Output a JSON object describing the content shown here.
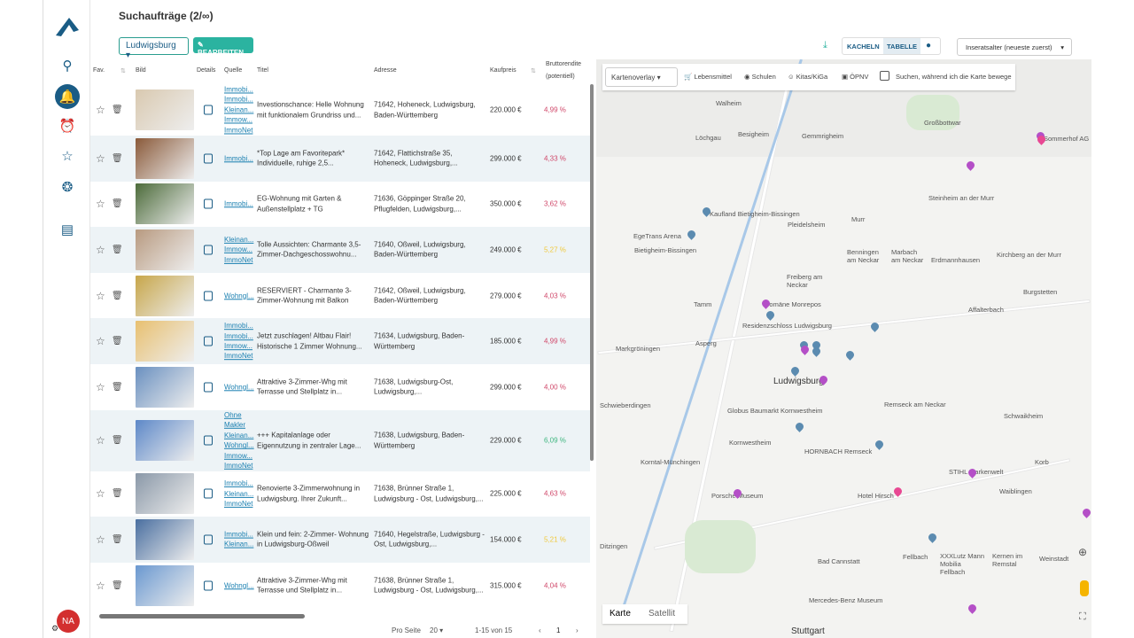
{
  "app": {
    "title": "Suchaufträge (2/∞)",
    "avatar": "NA"
  },
  "toolbar": {
    "location": "Ludwigsburg",
    "edit": "BEARBEITEN",
    "view_tiles": "KACHELN",
    "view_table": "TABELLE",
    "sort": "Inseratsalter (neueste zuerst)"
  },
  "table": {
    "headers": {
      "fav": "Fav.",
      "bild": "Bild",
      "details": "Details",
      "quelle": "Quelle",
      "titel": "Titel",
      "adresse": "Adresse",
      "kaufpreis": "Kaufpreis",
      "rendite": "Bruttorendite",
      "rendite2": "(potentiell)"
    },
    "rows": [
      {
        "sources": [
          "Immobi...",
          "Immobi...",
          "Kleinan...",
          "Immow...",
          "ImmoNet"
        ],
        "title": "Investionschance: Helle Wohnung mit funktionalem Grundriss und...",
        "address": "71642, Hoheneck, Ludwigsburg, Baden-Württemberg",
        "price": "220.000 €",
        "yield": "4,99 %",
        "ycolor": "#d0486a"
      },
      {
        "sources": [
          "Immobi..."
        ],
        "title": "*Top Lage am Favoritepark* Individuelle, ruhige 2,5...",
        "address": "71642, Flattichstraße 35, Hoheneck, Ludwigsburg,...",
        "price": "299.000 €",
        "yield": "4,33 %",
        "ycolor": "#d0486a"
      },
      {
        "sources": [
          "Immobi..."
        ],
        "title": "EG-Wohnung mit Garten & Außenstellplatz + TG",
        "address": "71636, Göppinger Straße 20, Pflugfelden, Ludwigsburg,...",
        "price": "350.000 €",
        "yield": "3,62 %",
        "ycolor": "#d0486a"
      },
      {
        "sources": [
          "Kleinan...",
          "Immow...",
          "ImmoNet"
        ],
        "title": "Tolle Aussichten: Charmante 3,5-Zimmer-Dachgeschosswohnu...",
        "address": "71640, Oßweil, Ludwigsburg, Baden-Württemberg",
        "price": "249.000 €",
        "yield": "5,27 %",
        "ycolor": "#f0c93c"
      },
      {
        "sources": [
          "Wohngl..."
        ],
        "title": "RESERVIERT - Charmante 3-Zimmer-Wohnung mit Balkon",
        "address": "71642, Oßweil, Ludwigsburg, Baden-Württemberg",
        "price": "279.000 €",
        "yield": "4,03 %",
        "ycolor": "#d0486a"
      },
      {
        "sources": [
          "Immobi...",
          "Immobi...",
          "Immow...",
          "ImmoNet"
        ],
        "title": "Jetzt zuschlagen! Altbau Flair! Historische 1 Zimmer Wohnung...",
        "address": "71634, Ludwigsburg, Baden-Württemberg",
        "price": "185.000 €",
        "yield": "4,99 %",
        "ycolor": "#d0486a"
      },
      {
        "sources": [
          "Wohngl..."
        ],
        "title": "Attraktive 3-Zimmer-Whg mit Terrasse und Stellplatz in...",
        "address": "71638, Ludwigsburg-Ost, Ludwigsburg,...",
        "price": "299.000 €",
        "yield": "4,00 %",
        "ycolor": "#d0486a"
      },
      {
        "sources": [
          "Ohne",
          "Makler",
          "Kleinan...",
          "Wohngl...",
          "Immow...",
          "ImmoNet"
        ],
        "title": "+++ Kapitalanlage oder Eigennutzung in zentraler Lage...",
        "address": "71638, Ludwigsburg, Baden-Württemberg",
        "price": "229.000 €",
        "yield": "6,09 %",
        "ycolor": "#3fb67f"
      },
      {
        "sources": [
          "Immobi...",
          "Kleinan...",
          "ImmoNet"
        ],
        "title": "Renovierte 3-Zimmerwohnung in Ludwigsburg. Ihrer Zukunft...",
        "address": "71638, Brünner Straße 1, Ludwigsburg - Ost, Ludwigsburg,...",
        "price": "225.000 €",
        "yield": "4,63 %",
        "ycolor": "#d0486a"
      },
      {
        "sources": [
          "Immobi...",
          "Kleinan..."
        ],
        "title": "Klein und fein: 2-Zimmer- Wohnung in Ludwigsburg-Oßweil",
        "address": "71640, Hegelstraße, Ludwigsburg - Ost, Ludwigsburg,...",
        "price": "154.000 €",
        "yield": "5,21 %",
        "ycolor": "#f0c93c"
      },
      {
        "sources": [
          "Wohngl..."
        ],
        "title": "Attraktive 3-Zimmer-Whg mit Terrasse und Stellplatz in...",
        "address": "71638, Brünner Straße 1, Ludwigsburg - Ost, Ludwigsburg,...",
        "price": "315.000 €",
        "yield": "4,04 %",
        "ycolor": "#d0486a"
      }
    ]
  },
  "pagination": {
    "per_page_label": "Pro Seite",
    "per_page": "20",
    "range": "1-15 von 15",
    "page": "1"
  },
  "map": {
    "overlay": "Kartenoverlay",
    "filters": [
      "Lebensmittel",
      "Schulen",
      "Kitas/KiGa",
      "ÖPNV"
    ],
    "search_on_move": "Suchen, während ich die Karte bewege",
    "tabs": [
      "Karte",
      "Satellit"
    ],
    "labels": [
      "Walheim",
      "Löchgau",
      "Besigheim",
      "Gemmrigheim",
      "Großbottwar",
      "Kaufland Bietigheim-Bissingen",
      "EgeTrans Arena",
      "Bietigheim-Bissingen",
      "Pleidelsheim",
      "Steinheim an der Murr",
      "Murr",
      "Freiberg am Neckar",
      "Benningen am Neckar",
      "Marbach am Neckar",
      "Erdmannhausen",
      "Kirchberg an der Murr",
      "Tamm",
      "Domäne Monrepos",
      "Markgröningen",
      "Asperg",
      "Residenzschloss Ludwigsburg",
      "Ludwigsburg",
      "Affalterbach",
      "Burgstetten",
      "Schwieberdingen",
      "Remseck am Neckar",
      "Schwaikheim",
      "Kornwestheim",
      "Globus Baumarkt Kornwestheim",
      "HORNBACH Remseck",
      "Korntal-Münchingen",
      "STIHL Markenwelt",
      "Porsche Museum",
      "Hotel Hirsch",
      "Korb",
      "Ditzingen",
      "Waiblingen",
      "Fellbach",
      "XXXLutz Mann Mobilia Fellbach",
      "Kernen im Remstal",
      "Weinstadt",
      "Bad Cannstatt",
      "Mercedes-Benz Museum",
      "Stuttgart",
      "Sommerhof AG"
    ]
  }
}
